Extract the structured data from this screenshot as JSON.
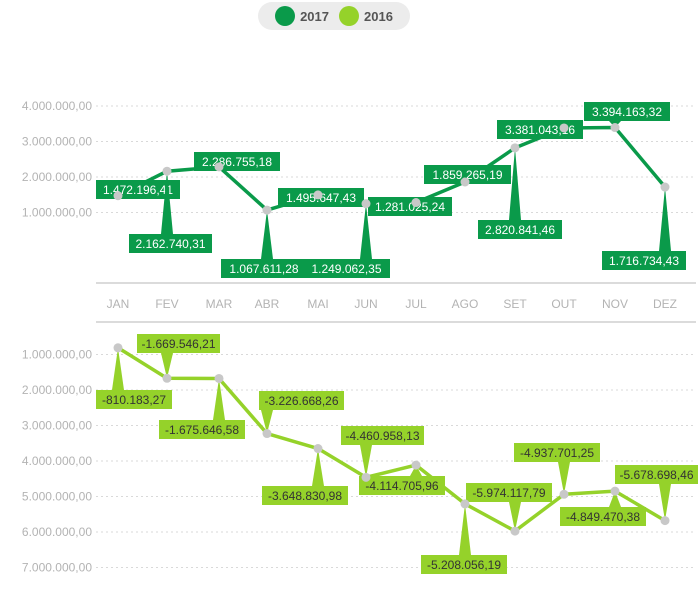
{
  "legend": {
    "items": [
      {
        "label": "2017",
        "color": "#0a9a4a"
      },
      {
        "label": "2016",
        "color": "#95d22a"
      }
    ]
  },
  "colors": {
    "grid": "#d9d9d9",
    "point": "#c8c8c8",
    "tick": "#b3b3b3",
    "label_2017_text": "#ffffff",
    "label_2016_text": "#333333"
  },
  "chart_data": [
    {
      "type": "line",
      "series": [
        {
          "name": "2017",
          "color": "#0a9a4a",
          "values": [
            1472196.41,
            2162740.31,
            2286755.18,
            1067611.28,
            1495647.43,
            1249062.35,
            1281025.24,
            1859265.19,
            2820841.46,
            3381043.16,
            3394163.32,
            1716734.43
          ],
          "labels": [
            "1.472.196,41",
            "2.162.740,31",
            "2.286.755,18",
            "1.067.611,28",
            "1.495.647,43",
            "1.249.062,35",
            "1.281.025,24",
            "1.859.265,19",
            "2.820.841,46",
            "3.381.043,16",
            "3.394.163,32",
            "1.716.734,43"
          ]
        }
      ],
      "categories": [
        "JAN",
        "FEV",
        "MAR",
        "ABR",
        "MAI",
        "JUN",
        "JUL",
        "AGO",
        "SET",
        "OUT",
        "NOV",
        "DEZ"
      ],
      "yticks": [
        "1.000.000,00",
        "2.000.000,00",
        "3.000.000,00",
        "4.000.000,00"
      ],
      "ylim": [
        0,
        4500000
      ],
      "grid": true
    },
    {
      "type": "line",
      "series": [
        {
          "name": "2016",
          "color": "#95d22a",
          "values": [
            -810183.27,
            -1669546.21,
            -1675646.58,
            -3226668.26,
            -3648830.98,
            -4460958.13,
            -4114705.96,
            -5208056.19,
            -5974117.79,
            -4937701.25,
            -4849470.38,
            -5678698.46
          ],
          "labels": [
            "-810.183,27",
            "-1.669.546,21",
            "-1.675.646,58",
            "-3.226.668,26",
            "-3.648.830,98",
            "-4.460.958,13",
            "-4.114.705,96",
            "-5.208.056,19",
            "-5.974.117,79",
            "-4.937.701,25",
            "-4.849.470,38",
            "-5.678.698,46"
          ]
        }
      ],
      "categories": [
        "JAN",
        "FEV",
        "MAR",
        "ABR",
        "MAI",
        "JUN",
        "JUL",
        "AGO",
        "SET",
        "OUT",
        "NOV",
        "DEZ"
      ],
      "yticks": [
        "1.000.000,00",
        "2.000.000,00",
        "3.000.000,00",
        "4.000.000,00",
        "5.000.000,00",
        "6.000.000,00",
        "7.000.000,00"
      ],
      "ylim": [
        0,
        -7000000
      ],
      "grid": true,
      "axis": "inverted, values shown as positive magnitudes"
    }
  ]
}
